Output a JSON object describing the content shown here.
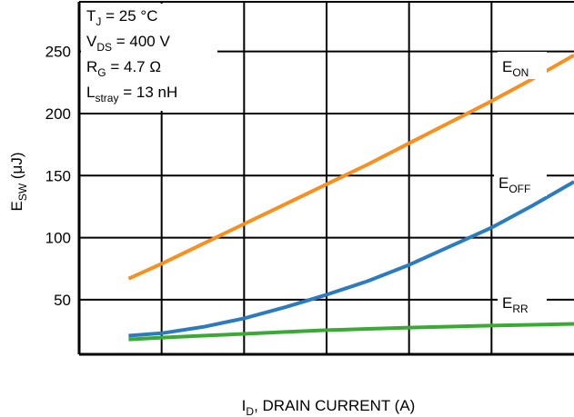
{
  "chart_data": {
    "type": "line",
    "x_axis": {
      "label_main": "I",
      "label_sub": "D",
      "label_rest": ", DRAIN CURRENT (A)",
      "tick_labels": []
    },
    "y_axis": {
      "label_main": "E",
      "label_sub": "SW",
      "label_rest": " (μJ)",
      "ticks": [
        50,
        100,
        150,
        200,
        250
      ],
      "tick_labels": [
        "50",
        "100",
        "150",
        "200",
        "250"
      ],
      "ylim": [
        6,
        290
      ]
    },
    "xlim": [
      0,
      6
    ],
    "grid": true,
    "conditions": [
      {
        "main": "T",
        "sub": "J",
        "rest": " = 25 °C"
      },
      {
        "main": "V",
        "sub": "DS",
        "rest": " = 400 V"
      },
      {
        "main": "R",
        "sub": "G",
        "rest": " = 4.7 Ω"
      },
      {
        "main": "L",
        "sub": "stray",
        "rest": " = 13 nH"
      }
    ],
    "series": [
      {
        "label_main": "E",
        "label_sub": "ON",
        "color": "#F7901E",
        "x": [
          0.6,
          1.0,
          1.5,
          2.0,
          2.5,
          3.0,
          3.5,
          4.0,
          4.5,
          5.0,
          5.5,
          6.0
        ],
        "values": [
          67,
          79,
          95,
          111,
          127,
          143,
          159,
          176,
          193,
          210,
          228,
          247
        ]
      },
      {
        "label_main": "E",
        "label_sub": "OFF",
        "color": "#2B7BBF",
        "x": [
          0.6,
          1.0,
          1.5,
          2.0,
          2.5,
          3.0,
          3.5,
          4.0,
          4.5,
          5.0,
          5.5,
          6.0
        ],
        "values": [
          21,
          23,
          28,
          35,
          44,
          54,
          65,
          78,
          93,
          108,
          126,
          145
        ]
      },
      {
        "label_main": "E",
        "label_sub": "RR",
        "color": "#3AAA35",
        "x": [
          0.6,
          1.0,
          1.5,
          2.0,
          2.5,
          3.0,
          3.5,
          4.0,
          4.5,
          5.0,
          5.5,
          6.0
        ],
        "values": [
          18,
          19.5,
          21,
          22.5,
          24,
          25.5,
          26.5,
          27.5,
          28.3,
          29.1,
          29.8,
          30.5
        ]
      }
    ]
  }
}
